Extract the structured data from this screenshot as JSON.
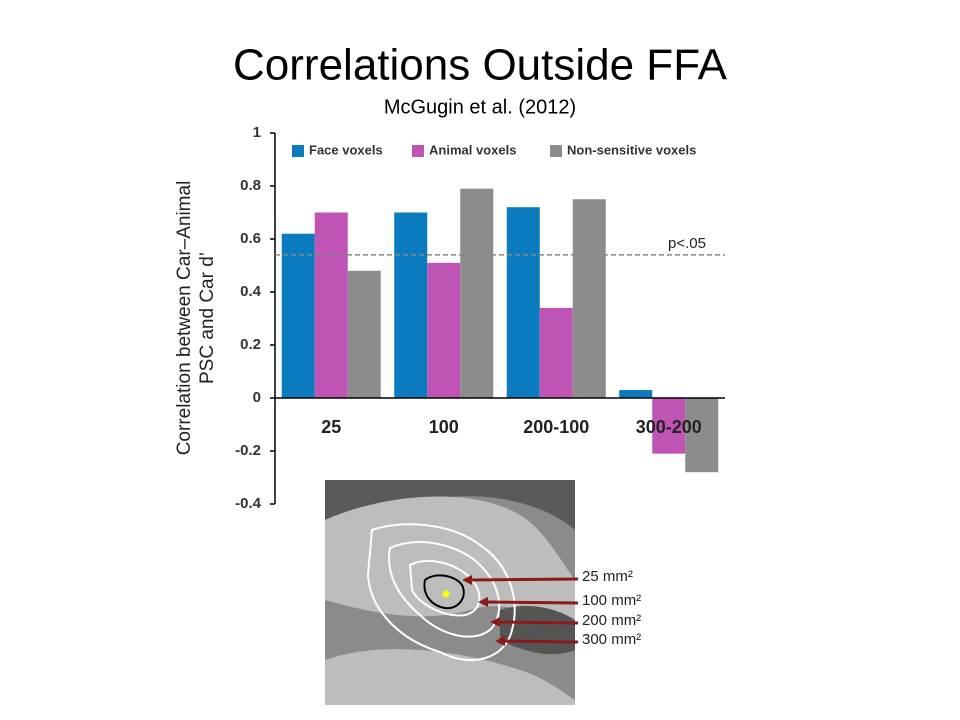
{
  "title": "Correlations Outside FFA",
  "subtitle": "McGugin et al. (2012)",
  "chart_data": {
    "type": "bar",
    "ylabel": [
      "Correlation between Car–Animal",
      "PSC and Car d’"
    ],
    "categories": [
      "25",
      "100",
      "200-100",
      "300-200"
    ],
    "series": [
      {
        "name": "Face voxels",
        "color": "#0a7bbf",
        "values": [
          0.62,
          0.7,
          0.72,
          0.03
        ]
      },
      {
        "name": "Animal voxels",
        "color": "#c054b4",
        "values": [
          0.7,
          0.51,
          0.34,
          -0.21
        ]
      },
      {
        "name": "Non-sensitive voxels",
        "color": "#8c8c8c",
        "values": [
          0.48,
          0.79,
          0.75,
          -0.28
        ]
      }
    ],
    "ylim": [
      -0.4,
      1
    ],
    "yticks": [
      -0.4,
      -0.2,
      0,
      0.2,
      0.4,
      0.6,
      0.8,
      1
    ],
    "threshold": {
      "value": 0.54,
      "label": "p<.05"
    },
    "legend": "top"
  },
  "figure": {
    "labels": [
      "25 mm²",
      "100 mm²",
      "200 mm²",
      "300 mm²"
    ]
  }
}
